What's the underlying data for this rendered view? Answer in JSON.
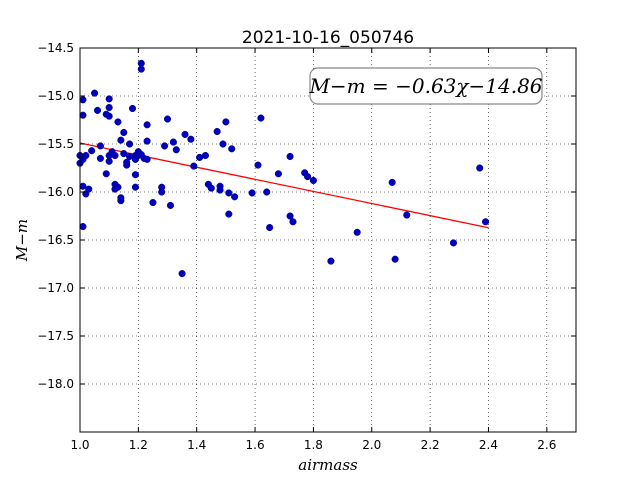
{
  "chart_data": {
    "type": "scatter",
    "title": "2021-10-16_050746",
    "xlabel": "airmass",
    "ylabel": "M−m",
    "xlim": [
      1.0,
      2.7
    ],
    "ylim": [
      -14.5,
      -18.5
    ],
    "y_inverted": true,
    "grid": true,
    "x_ticks": [
      "1.0",
      "1.2",
      "1.4",
      "1.6",
      "1.8",
      "2.0",
      "2.2",
      "2.4",
      "2.6"
    ],
    "y_ticks": [
      "−14.5",
      "−15.0",
      "−15.5",
      "−16.0",
      "−16.5",
      "−17.0",
      "−17.5",
      "−18.0"
    ],
    "annotation": "M−m = −0.63χ−14.86",
    "fit": {
      "slope": -0.63,
      "intercept": -14.86,
      "x_range": [
        1.0,
        2.4
      ],
      "color": "#ff0000"
    },
    "point_color": "#0000bf",
    "points": [
      [
        1.0,
        -15.62
      ],
      [
        1.0,
        -15.7
      ],
      [
        1.01,
        -15.66
      ],
      [
        1.01,
        -15.2
      ],
      [
        1.01,
        -15.04
      ],
      [
        1.01,
        -15.94
      ],
      [
        1.01,
        -16.36
      ],
      [
        1.02,
        -15.62
      ],
      [
        1.02,
        -16.02
      ],
      [
        1.03,
        -15.97
      ],
      [
        1.04,
        -15.57
      ],
      [
        1.05,
        -14.97
      ],
      [
        1.06,
        -15.15
      ],
      [
        1.07,
        -15.52
      ],
      [
        1.07,
        -15.65
      ],
      [
        1.09,
        -15.81
      ],
      [
        1.09,
        -15.19
      ],
      [
        1.1,
        -15.03
      ],
      [
        1.1,
        -15.12
      ],
      [
        1.1,
        -15.21
      ],
      [
        1.1,
        -15.68
      ],
      [
        1.1,
        -15.62
      ],
      [
        1.11,
        -15.58
      ],
      [
        1.12,
        -15.62
      ],
      [
        1.12,
        -15.92
      ],
      [
        1.12,
        -15.97
      ],
      [
        1.13,
        -15.27
      ],
      [
        1.13,
        -15.95
      ],
      [
        1.14,
        -16.06
      ],
      [
        1.14,
        -16.09
      ],
      [
        1.14,
        -15.46
      ],
      [
        1.15,
        -15.6
      ],
      [
        1.15,
        -15.38
      ],
      [
        1.16,
        -15.69
      ],
      [
        1.16,
        -15.72
      ],
      [
        1.17,
        -15.63
      ],
      [
        1.17,
        -15.5
      ],
      [
        1.18,
        -15.13
      ],
      [
        1.19,
        -15.62
      ],
      [
        1.19,
        -15.95
      ],
      [
        1.19,
        -15.82
      ],
      [
        1.19,
        -15.66
      ],
      [
        1.2,
        -15.58
      ],
      [
        1.2,
        -15.62
      ],
      [
        1.21,
        -14.66
      ],
      [
        1.21,
        -14.72
      ],
      [
        1.21,
        -15.61
      ],
      [
        1.22,
        -15.65
      ],
      [
        1.23,
        -15.3
      ],
      [
        1.23,
        -15.47
      ],
      [
        1.23,
        -15.66
      ],
      [
        1.25,
        -16.11
      ],
      [
        1.28,
        -15.95
      ],
      [
        1.28,
        -16.0
      ],
      [
        1.29,
        -15.52
      ],
      [
        1.3,
        -15.24
      ],
      [
        1.31,
        -16.14
      ],
      [
        1.32,
        -15.48
      ],
      [
        1.33,
        -15.56
      ],
      [
        1.35,
        -16.85
      ],
      [
        1.36,
        -15.4
      ],
      [
        1.38,
        -15.45
      ],
      [
        1.39,
        -15.73
      ],
      [
        1.41,
        -15.64
      ],
      [
        1.43,
        -15.62
      ],
      [
        1.44,
        -15.92
      ],
      [
        1.45,
        -15.96
      ],
      [
        1.47,
        -15.37
      ],
      [
        1.48,
        -15.94
      ],
      [
        1.48,
        -15.98
      ],
      [
        1.49,
        -15.5
      ],
      [
        1.5,
        -15.27
      ],
      [
        1.51,
        -16.23
      ],
      [
        1.51,
        -16.01
      ],
      [
        1.52,
        -15.55
      ],
      [
        1.53,
        -16.05
      ],
      [
        1.59,
        -16.01
      ],
      [
        1.61,
        -15.72
      ],
      [
        1.62,
        -15.23
      ],
      [
        1.64,
        -16.0
      ],
      [
        1.65,
        -16.37
      ],
      [
        1.68,
        -15.81
      ],
      [
        1.72,
        -15.63
      ],
      [
        1.72,
        -16.25
      ],
      [
        1.73,
        -16.31
      ],
      [
        1.77,
        -15.8
      ],
      [
        1.78,
        -15.84
      ],
      [
        1.8,
        -15.88
      ],
      [
        1.86,
        -16.72
      ],
      [
        1.95,
        -16.42
      ],
      [
        2.07,
        -15.9
      ],
      [
        2.08,
        -16.7
      ],
      [
        2.12,
        -16.24
      ],
      [
        2.28,
        -16.53
      ],
      [
        2.37,
        -15.75
      ],
      [
        2.39,
        -16.31
      ]
    ]
  }
}
